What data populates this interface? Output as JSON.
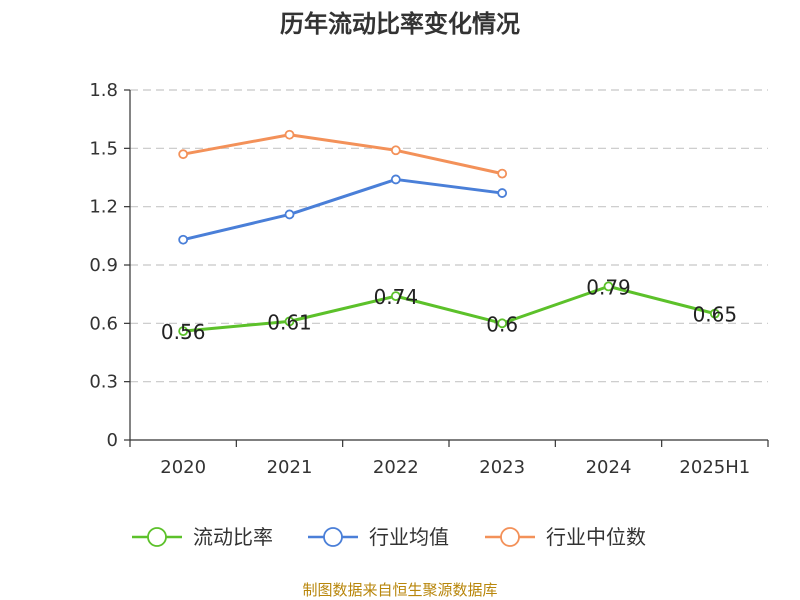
{
  "chart_data": {
    "type": "line",
    "title": "历年流动比率变化情况",
    "categories": [
      "2020",
      "2021",
      "2022",
      "2023",
      "2024",
      "2025H1"
    ],
    "ylim": [
      0,
      1.8
    ],
    "yticks": [
      0,
      0.3,
      0.6,
      0.9,
      1.2,
      1.5,
      1.8
    ],
    "ytick_labels": [
      "0",
      "0.3",
      "0.6",
      "0.9",
      "1.2",
      "1.5",
      "1.8"
    ],
    "grid": true,
    "legend_position": "bottom",
    "series": [
      {
        "name": "流动比率",
        "color": "#5cc12a",
        "values": [
          0.56,
          0.61,
          0.74,
          0.6,
          0.79,
          0.65
        ],
        "labels": [
          "0.56",
          "0.61",
          "0.74",
          "0.6",
          "0.79",
          "0.65"
        ]
      },
      {
        "name": "行业均值",
        "color": "#4a7fd8",
        "values": [
          1.03,
          1.16,
          1.34,
          1.27,
          null,
          null
        ]
      },
      {
        "name": "行业中位数",
        "color": "#f39159",
        "values": [
          1.47,
          1.57,
          1.49,
          1.37,
          null,
          null
        ]
      }
    ]
  },
  "source_text": "制图数据来自恒生聚源数据库"
}
